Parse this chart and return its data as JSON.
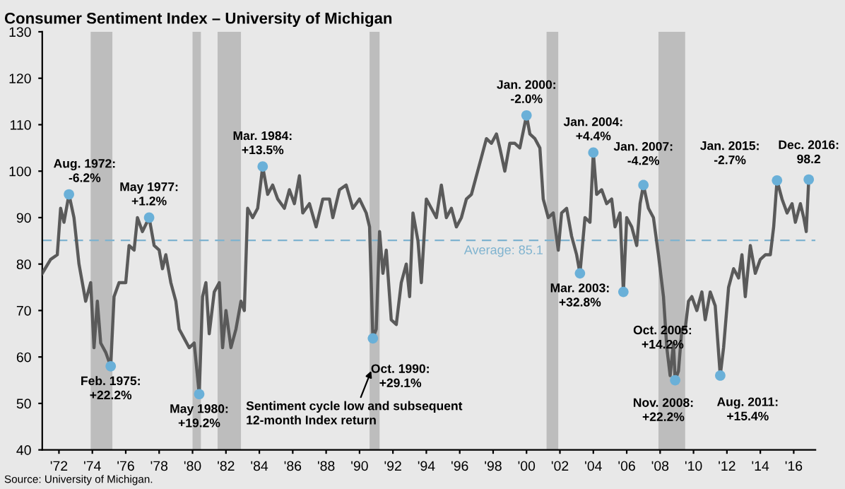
{
  "chart_data": {
    "type": "line",
    "title": "Consumer Sentiment Index – University of Michigan",
    "xlim": [
      1971,
      2017.3
    ],
    "ylim": [
      40,
      130
    ],
    "xticks": [
      {
        "value": 1972,
        "label": "'72"
      },
      {
        "value": 1974,
        "label": "'74"
      },
      {
        "value": 1976,
        "label": "'76"
      },
      {
        "value": 1978,
        "label": "'78"
      },
      {
        "value": 1980,
        "label": "'80"
      },
      {
        "value": 1982,
        "label": "'82"
      },
      {
        "value": 1984,
        "label": "'84"
      },
      {
        "value": 1986,
        "label": "'86"
      },
      {
        "value": 1988,
        "label": "'88"
      },
      {
        "value": 1990,
        "label": "'90"
      },
      {
        "value": 1992,
        "label": "'92"
      },
      {
        "value": 1994,
        "label": "'94"
      },
      {
        "value": 1996,
        "label": "'96"
      },
      {
        "value": 1998,
        "label": "'98"
      },
      {
        "value": 2000,
        "label": "'00"
      },
      {
        "value": 2002,
        "label": "'02"
      },
      {
        "value": 2004,
        "label": "'04"
      },
      {
        "value": 2006,
        "label": "'06"
      },
      {
        "value": 2008,
        "label": "'08"
      },
      {
        "value": 2010,
        "label": "'10"
      },
      {
        "value": 2012,
        "label": "'12"
      },
      {
        "value": 2014,
        "label": "'14"
      },
      {
        "value": 2016,
        "label": "'16"
      }
    ],
    "yticks": [
      40,
      50,
      60,
      70,
      80,
      90,
      100,
      110,
      120,
      130
    ],
    "grid": false,
    "legend": false,
    "series": [
      {
        "color": "#5a5a5a",
        "x": [
          1971.0,
          1971.5,
          1971.9,
          1972.1,
          1972.3,
          1972.6,
          1972.9,
          1973.2,
          1973.6,
          1973.9,
          1974.1,
          1974.3,
          1974.5,
          1974.8,
          1975.1,
          1975.3,
          1975.6,
          1976.0,
          1976.2,
          1976.5,
          1976.7,
          1977.0,
          1977.4,
          1977.7,
          1978.0,
          1978.2,
          1978.4,
          1978.7,
          1979.0,
          1979.2,
          1979.5,
          1979.8,
          1980.1,
          1980.4,
          1980.6,
          1980.8,
          1981.0,
          1981.3,
          1981.6,
          1981.8,
          1982.0,
          1982.3,
          1982.6,
          1982.9,
          1983.1,
          1983.3,
          1983.6,
          1983.9,
          1984.2,
          1984.5,
          1984.8,
          1985.1,
          1985.5,
          1985.8,
          1986.1,
          1986.4,
          1986.6,
          1987.0,
          1987.4,
          1987.8,
          1988.2,
          1988.4,
          1988.8,
          1989.2,
          1989.6,
          1990.0,
          1990.4,
          1990.6,
          1990.8,
          1991.0,
          1991.2,
          1991.4,
          1991.6,
          1991.9,
          1992.2,
          1992.5,
          1992.8,
          1993.0,
          1993.2,
          1993.5,
          1993.7,
          1994.0,
          1994.3,
          1994.6,
          1994.9,
          1995.2,
          1995.5,
          1995.8,
          1996.1,
          1996.4,
          1996.7,
          1997.0,
          1997.3,
          1997.6,
          1997.9,
          1998.2,
          1998.4,
          1998.7,
          1999.0,
          1999.3,
          1999.6,
          2000.0,
          2000.2,
          2000.5,
          2000.8,
          2001.0,
          2001.3,
          2001.6,
          2001.9,
          2002.1,
          2002.4,
          2002.7,
          2003.0,
          2003.2,
          2003.5,
          2003.8,
          2004.0,
          2004.2,
          2004.5,
          2004.8,
          2005.1,
          2005.3,
          2005.6,
          2005.8,
          2006.0,
          2006.3,
          2006.6,
          2006.8,
          2007.0,
          2007.3,
          2007.6,
          2007.9,
          2008.2,
          2008.4,
          2008.6,
          2008.8,
          2008.9,
          2009.1,
          2009.3,
          2009.5,
          2009.7,
          2009.9,
          2010.2,
          2010.5,
          2010.7,
          2011.0,
          2011.3,
          2011.6,
          2011.8,
          2012.1,
          2012.4,
          2012.7,
          2012.9,
          2013.1,
          2013.4,
          2013.7,
          2014.0,
          2014.3,
          2014.6,
          2014.8,
          2015.0,
          2015.3,
          2015.6,
          2015.9,
          2016.1,
          2016.4,
          2016.6,
          2016.75,
          2016.9
        ],
        "values": [
          78,
          81,
          82,
          92,
          89,
          95,
          90,
          80,
          72,
          76,
          62,
          72,
          63,
          61,
          58,
          73,
          76,
          76,
          84,
          83,
          90,
          87,
          90,
          84,
          83,
          79,
          82,
          76,
          72,
          66,
          64,
          62,
          63,
          52,
          73,
          76,
          65,
          74,
          76,
          62,
          70,
          62,
          66,
          72,
          70,
          92,
          90,
          92,
          101,
          95,
          97,
          94,
          92,
          96,
          93,
          99,
          91,
          93,
          88,
          94,
          94,
          90,
          96,
          97,
          92,
          94,
          91,
          88,
          64,
          66,
          87,
          78,
          83,
          68,
          67,
          76,
          80,
          73,
          91,
          85,
          76,
          94,
          92,
          90,
          97,
          90,
          92,
          88,
          90,
          94,
          95,
          99,
          103,
          107,
          106,
          108,
          105,
          100,
          106,
          106,
          105,
          112,
          108,
          107,
          105,
          94,
          90,
          91,
          83,
          91,
          92,
          86,
          82,
          78,
          90,
          89,
          104,
          95,
          96,
          93,
          94,
          88,
          91,
          74,
          90,
          88,
          84,
          93,
          97,
          92,
          90,
          82,
          73,
          62,
          56,
          63,
          55,
          57,
          66,
          66,
          72,
          73,
          70,
          74,
          68,
          74,
          71,
          56,
          62,
          75,
          79,
          77,
          82,
          73,
          84,
          78,
          81,
          82,
          82,
          88,
          98,
          94,
          91,
          93,
          89,
          93,
          90,
          87,
          98.2
        ]
      },
      {
        "type": "scatter",
        "color": "#6ab0d8",
        "x": [
          1972.6,
          1975.1,
          1977.4,
          1980.4,
          1984.2,
          1990.8,
          2000.0,
          2003.2,
          2004.0,
          2005.8,
          2007.0,
          2008.9,
          2011.6,
          2015.0,
          2016.9
        ],
        "values": [
          95,
          58,
          90,
          52,
          101,
          64,
          112,
          78,
          104,
          74,
          97,
          55,
          56,
          98,
          98.2
        ]
      }
    ],
    "ref_lines": [
      {
        "axis": "y",
        "value": 85.1,
        "label": "Average: 85.1",
        "color": "#7fb3cf",
        "line_style": "dashed"
      }
    ],
    "bands": [
      {
        "axis": "x",
        "from": 1973.9,
        "to": 1975.2,
        "color": "#bdbdbd"
      },
      {
        "axis": "x",
        "from": 1980.0,
        "to": 1980.5,
        "color": "#bdbdbd"
      },
      {
        "axis": "x",
        "from": 1981.5,
        "to": 1982.9,
        "color": "#bdbdbd"
      },
      {
        "axis": "x",
        "from": 1990.6,
        "to": 1991.2,
        "color": "#bdbdbd"
      },
      {
        "axis": "x",
        "from": 2001.2,
        "to": 2001.9,
        "color": "#bdbdbd"
      },
      {
        "axis": "x",
        "from": 2007.9,
        "to": 2009.5,
        "color": "#bdbdbd"
      }
    ],
    "annotations": [
      {
        "text": "Aug. 1972:\n-6.2%",
        "x": 1972.6,
        "y": 95
      },
      {
        "text": "Feb. 1975:\n+22.2%",
        "x": 1975.1,
        "y": 58
      },
      {
        "text": "May 1977:\n+1.2%",
        "x": 1977.4,
        "y": 90
      },
      {
        "text": "May 1980:\n+19.2%",
        "x": 1980.4,
        "y": 52
      },
      {
        "text": "Mar. 1984:\n+13.5%",
        "x": 1984.2,
        "y": 101
      },
      {
        "text": "Oct. 1990:\n+29.1%",
        "x": 1990.8,
        "y": 64
      },
      {
        "text": "Jan. 2000:\n-2.0%",
        "x": 2000.0,
        "y": 112
      },
      {
        "text": "Mar. 2003:\n+32.8%",
        "x": 2003.2,
        "y": 78
      },
      {
        "text": "Jan. 2004:\n+4.4%",
        "x": 2004.0,
        "y": 104
      },
      {
        "text": "Oct. 2005:\n+14.2%",
        "x": 2005.8,
        "y": 74
      },
      {
        "text": "Jan. 2007:\n-4.2%",
        "x": 2007.0,
        "y": 97
      },
      {
        "text": "Nov. 2008:\n+22.2%",
        "x": 2008.9,
        "y": 55
      },
      {
        "text": "Aug. 2011:\n+15.4%",
        "x": 2011.6,
        "y": 56
      },
      {
        "text": "Jan. 2015:\n-2.7%",
        "x": 2015.0,
        "y": 98
      },
      {
        "text": "Dec. 2016:\n98.2",
        "x": 2016.9,
        "y": 98.2
      },
      "Sentiment cycle low and subsequent\n12-month Index return",
      "Source: University of Michigan."
    ]
  }
}
